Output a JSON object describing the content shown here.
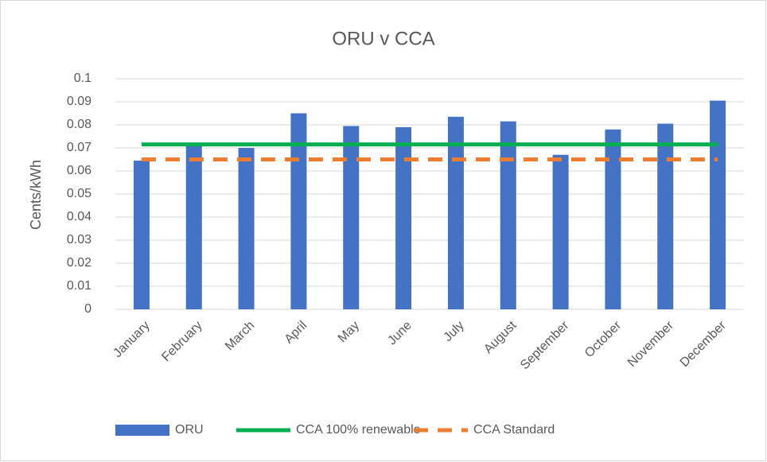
{
  "chart_data": {
    "type": "bar",
    "title": "ORU v CCA",
    "y_label": "Cents/kWh",
    "categories": [
      "January",
      "February",
      "March",
      "April",
      "May",
      "June",
      "July",
      "August",
      "September",
      "October",
      "November",
      "December"
    ],
    "series": [
      {
        "name": "ORU",
        "type": "bar",
        "color": "#4472c4",
        "values": [
          0.0645,
          0.071,
          0.07,
          0.085,
          0.0795,
          0.079,
          0.0835,
          0.0815,
          0.067,
          0.078,
          0.0805,
          0.0905
        ]
      },
      {
        "name": "CCA 100% renewable",
        "type": "line",
        "color": "#00b050",
        "values": [
          0.0715,
          0.0715,
          0.0715,
          0.0715,
          0.0715,
          0.0715,
          0.0715,
          0.0715,
          0.0715,
          0.0715,
          0.0715,
          0.0715
        ]
      },
      {
        "name": "CCA Standard",
        "type": "line",
        "dashed": true,
        "color": "#ed7d31",
        "values": [
          0.065,
          0.065,
          0.065,
          0.065,
          0.065,
          0.065,
          0.065,
          0.065,
          0.065,
          0.065,
          0.065,
          0.065
        ]
      }
    ],
    "ylim": [
      0,
      0.1
    ],
    "yticks": [
      0,
      0.01,
      0.02,
      0.03,
      0.04,
      0.05,
      0.06,
      0.07,
      0.08,
      0.09,
      0.1
    ],
    "grid": true,
    "legend": "bottom"
  }
}
